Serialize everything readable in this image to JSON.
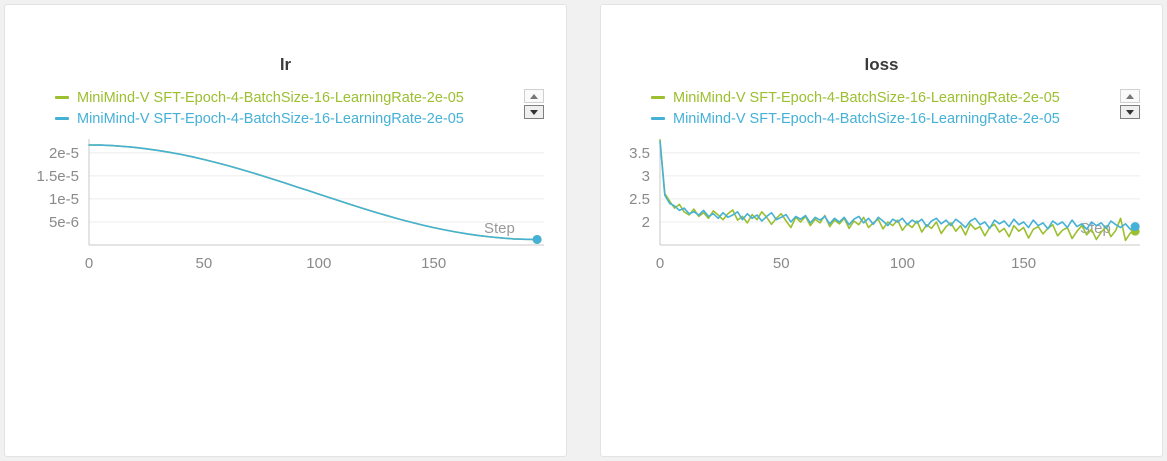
{
  "colors": {
    "green": "#9cbf2f",
    "blue": "#45b1d6",
    "axis": "#c9c9c9",
    "grid": "#ececec",
    "tick_text": "#8a8a8a",
    "title_text": "#3a3a3a",
    "step_label": "#999999",
    "panel_bg": "#ffffff",
    "page_bg": "#f1f1f2"
  },
  "chart_data": [
    {
      "type": "line",
      "title": "lr",
      "xlabel": "Step",
      "ylabel": "",
      "legend_position": "top-left",
      "grid": true,
      "xlim": [
        0,
        198
      ],
      "ylim": [
        0,
        2.3e-05
      ],
      "xticks": {
        "values": [
          0,
          50,
          100,
          150
        ],
        "labels": [
          "0",
          "50",
          "100",
          "150"
        ]
      },
      "yticks": {
        "values": [
          5e-06,
          1e-05,
          1.5e-05,
          2e-05
        ],
        "labels": [
          "5e-6",
          "1e-5",
          "1.5e-5",
          "2e-5"
        ]
      },
      "x": [
        0,
        5,
        10,
        15,
        20,
        25,
        30,
        35,
        40,
        45,
        50,
        55,
        60,
        65,
        70,
        75,
        80,
        85,
        90,
        95,
        100,
        105,
        110,
        115,
        120,
        125,
        130,
        135,
        140,
        145,
        150,
        155,
        160,
        165,
        170,
        175,
        180,
        185,
        190,
        195
      ],
      "series": [
        {
          "name": "MiniMind-V SFT-Epoch-4-BatchSize-16-LearningRate-2e-05",
          "color": "#9cbf2f",
          "values": [
            2.17e-05,
            2.167e-05,
            2.157e-05,
            2.14e-05,
            2.117e-05,
            2.088e-05,
            2.053e-05,
            2.011e-05,
            1.965e-05,
            1.913e-05,
            1.855e-05,
            1.793e-05,
            1.727e-05,
            1.658e-05,
            1.585e-05,
            1.509e-05,
            1.43e-05,
            1.349e-05,
            1.268e-05,
            1.186e-05,
            1.104e-05,
            1.022e-05,
            9.41e-06,
            8.59e-06,
            7.81e-06,
            7.05e-06,
            6.33e-06,
            5.63e-06,
            4.97e-06,
            4.35e-06,
            3.77e-06,
            3.25e-06,
            2.79e-06,
            2.37e-06,
            2.02e-06,
            1.73e-06,
            1.5e-06,
            1.33e-06,
            1.23e-06,
            1.2e-06
          ]
        },
        {
          "name": "MiniMind-V SFT-Epoch-4-BatchSize-16-LearningRate-2e-05",
          "color": "#45b1d6",
          "values": [
            2.17e-05,
            2.167e-05,
            2.157e-05,
            2.14e-05,
            2.117e-05,
            2.088e-05,
            2.053e-05,
            2.011e-05,
            1.965e-05,
            1.913e-05,
            1.855e-05,
            1.793e-05,
            1.727e-05,
            1.658e-05,
            1.585e-05,
            1.509e-05,
            1.43e-05,
            1.349e-05,
            1.268e-05,
            1.186e-05,
            1.104e-05,
            1.022e-05,
            9.41e-06,
            8.59e-06,
            7.81e-06,
            7.05e-06,
            6.33e-06,
            5.63e-06,
            4.97e-06,
            4.35e-06,
            3.77e-06,
            3.25e-06,
            2.79e-06,
            2.37e-06,
            2.02e-06,
            1.73e-06,
            1.5e-06,
            1.33e-06,
            1.23e-06,
            1.2e-06
          ]
        }
      ]
    },
    {
      "type": "line",
      "title": "loss",
      "xlabel": "Step",
      "ylabel": "",
      "legend_position": "top-left",
      "grid": true,
      "xlim": [
        0,
        198
      ],
      "ylim": [
        1.5,
        3.8
      ],
      "xticks": {
        "values": [
          0,
          50,
          100,
          150
        ],
        "labels": [
          "0",
          "50",
          "100",
          "150"
        ]
      },
      "yticks": {
        "values": [
          2,
          2.5,
          3,
          3.5
        ],
        "labels": [
          "2",
          "2.5",
          "3",
          "3.5"
        ]
      },
      "x": [
        0,
        2,
        4,
        6,
        8,
        10,
        12,
        14,
        16,
        18,
        20,
        22,
        24,
        26,
        28,
        30,
        32,
        34,
        36,
        38,
        40,
        42,
        44,
        46,
        48,
        50,
        52,
        54,
        56,
        58,
        60,
        62,
        64,
        66,
        68,
        70,
        72,
        74,
        76,
        78,
        80,
        82,
        84,
        86,
        88,
        90,
        92,
        94,
        96,
        98,
        100,
        102,
        104,
        106,
        108,
        110,
        112,
        114,
        116,
        118,
        120,
        122,
        124,
        126,
        128,
        130,
        132,
        134,
        136,
        138,
        140,
        142,
        144,
        146,
        148,
        150,
        152,
        154,
        156,
        158,
        160,
        162,
        164,
        166,
        168,
        170,
        172,
        174,
        176,
        178,
        180,
        182,
        184,
        186,
        188,
        190,
        192,
        194,
        196
      ],
      "series": [
        {
          "name": "MiniMind-V SFT-Epoch-4-BatchSize-16-LearningRate-2e-05",
          "color": "#9cbf2f",
          "values": [
            3.78,
            2.62,
            2.45,
            2.3,
            2.38,
            2.22,
            2.15,
            2.28,
            2.12,
            2.2,
            2.08,
            2.24,
            2.15,
            2.05,
            2.18,
            2.26,
            2.04,
            2.12,
            1.98,
            2.16,
            2.05,
            2.22,
            2.1,
            1.95,
            2.08,
            2.18,
            2.02,
            1.88,
            2.1,
            2.0,
            2.12,
            1.92,
            2.06,
            1.98,
            2.14,
            1.9,
            2.04,
            1.96,
            2.08,
            1.86,
            2.02,
            1.94,
            2.1,
            1.88,
            1.98,
            2.06,
            1.85,
            2.0,
            1.92,
            2.04,
            1.82,
            1.96,
            1.88,
            2.02,
            1.78,
            1.94,
            1.86,
            2.0,
            1.75,
            1.9,
            1.98,
            1.8,
            1.92,
            1.72,
            1.96,
            1.84,
            1.9,
            1.7,
            1.88,
            1.95,
            1.78,
            1.86,
            1.68,
            1.92,
            1.8,
            1.88,
            1.65,
            1.84,
            1.9,
            1.74,
            1.86,
            1.94,
            1.7,
            1.82,
            1.88,
            1.64,
            1.8,
            1.92,
            1.72,
            1.84,
            1.62,
            1.78,
            1.9,
            1.68,
            1.82,
            2.08,
            1.6,
            1.76,
            1.8
          ]
        },
        {
          "name": "MiniMind-V SFT-Epoch-4-BatchSize-16-LearningRate-2e-05",
          "color": "#45b1d6",
          "values": [
            3.75,
            2.58,
            2.4,
            2.35,
            2.25,
            2.3,
            2.18,
            2.22,
            2.15,
            2.25,
            2.12,
            2.18,
            2.08,
            2.2,
            2.1,
            2.15,
            2.22,
            2.05,
            2.18,
            2.08,
            2.15,
            2.02,
            2.12,
            2.2,
            2.05,
            2.1,
            2.16,
            2.0,
            2.12,
            2.06,
            2.14,
            1.98,
            2.1,
            2.04,
            2.12,
            1.96,
            2.08,
            2.0,
            2.1,
            1.94,
            2.06,
            2.12,
            1.98,
            2.08,
            1.95,
            2.1,
            2.02,
            1.92,
            2.06,
            2.0,
            2.08,
            1.94,
            2.04,
            1.98,
            2.06,
            1.9,
            2.02,
            2.08,
            1.96,
            2.04,
            1.92,
            2.06,
            1.98,
            1.88,
            2.02,
            2.08,
            1.94,
            2.0,
            1.86,
            2.04,
            1.96,
            2.02,
            1.9,
            2.06,
            1.94,
            2.0,
            1.88,
            2.04,
            1.92,
            1.98,
            1.85,
            2.02,
            1.94,
            2.0,
            1.88,
            2.04,
            1.9,
            1.96,
            1.84,
            2.0,
            1.92,
            1.98,
            1.86,
            2.02,
            1.94,
            1.88,
            1.96,
            1.84,
            1.9
          ]
        }
      ]
    }
  ]
}
